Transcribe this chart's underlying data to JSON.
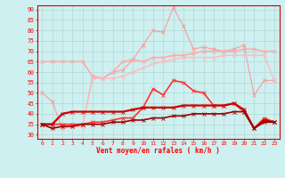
{
  "xlabel": "Vent moyen/en rafales ( km/h )",
  "bg_color": "#cff0f0",
  "grid_color": "#aacccc",
  "x_ticks": [
    0,
    1,
    2,
    3,
    4,
    5,
    6,
    7,
    8,
    9,
    10,
    11,
    12,
    13,
    14,
    15,
    16,
    17,
    18,
    19,
    20,
    21,
    22,
    23
  ],
  "ylim": [
    28,
    92
  ],
  "yticks": [
    30,
    35,
    40,
    45,
    50,
    55,
    60,
    65,
    70,
    75,
    80,
    85,
    90
  ],
  "lines": [
    {
      "name": "light_pink_volatile",
      "color": "#ff9999",
      "lw": 0.8,
      "marker": "x",
      "markersize": 2.5,
      "y": [
        50,
        46,
        33,
        34,
        34,
        58,
        57,
        60,
        61,
        66,
        73,
        80,
        79,
        91,
        82,
        71,
        72,
        71,
        70,
        71,
        73,
        49,
        56,
        56
      ]
    },
    {
      "name": "light_pink_upper_flat",
      "color": "#ffaaaa",
      "lw": 1.2,
      "marker": "x",
      "markersize": 2.5,
      "y": [
        65,
        65,
        65,
        65,
        65,
        58,
        57,
        60,
        65,
        66,
        65,
        67,
        67,
        68,
        68,
        69,
        70,
        70,
        70,
        70,
        71,
        71,
        70,
        70
      ]
    },
    {
      "name": "pink_mid_rising",
      "color": "#ffbbbb",
      "lw": 1.0,
      "marker": "x",
      "markersize": 2.5,
      "y": [
        35,
        33,
        34,
        34,
        34,
        57,
        57,
        57,
        58,
        60,
        62,
        64,
        65,
        66,
        67,
        67,
        67,
        67,
        68,
        68,
        68,
        68,
        68,
        56
      ]
    },
    {
      "name": "red_gust_mid",
      "color": "#ff3333",
      "lw": 1.2,
      "marker": "x",
      "markersize": 2.5,
      "y": [
        35,
        35,
        35,
        35,
        35,
        36,
        36,
        37,
        38,
        38,
        43,
        52,
        49,
        56,
        55,
        51,
        50,
        44,
        44,
        45,
        41,
        33,
        38,
        36
      ]
    },
    {
      "name": "darkred_mean_flat",
      "color": "#cc0000",
      "lw": 1.6,
      "marker": "x",
      "markersize": 2.5,
      "y": [
        35,
        35,
        40,
        41,
        41,
        41,
        41,
        41,
        41,
        42,
        43,
        43,
        43,
        43,
        44,
        44,
        44,
        44,
        44,
        45,
        42,
        33,
        37,
        36
      ]
    },
    {
      "name": "darkred_lower",
      "color": "#990000",
      "lw": 1.2,
      "marker": "x",
      "markersize": 2.5,
      "y": [
        35,
        33,
        34,
        34,
        35,
        35,
        35,
        36,
        36,
        37,
        37,
        38,
        38,
        39,
        39,
        40,
        40,
        40,
        40,
        41,
        41,
        33,
        36,
        36
      ]
    }
  ]
}
